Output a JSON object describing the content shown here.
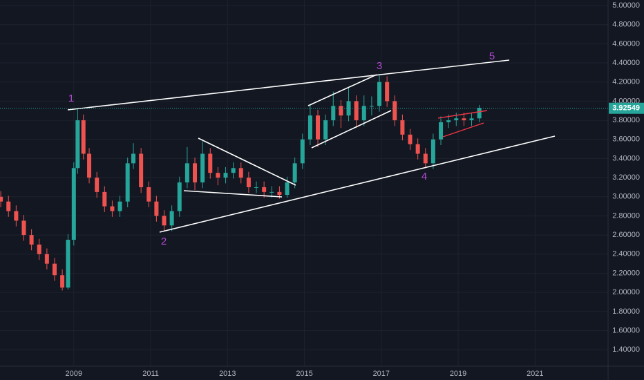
{
  "chart_data": {
    "type": "candlestick",
    "x": [
      2007.1,
      2007.3,
      2007.5,
      2007.7,
      2007.9,
      2008.1,
      2008.3,
      2008.5,
      2008.7,
      2008.85,
      2009.0,
      2009.1,
      2009.25,
      2009.4,
      2009.6,
      2009.8,
      2010.0,
      2010.2,
      2010.4,
      2010.55,
      2010.75,
      2010.95,
      2011.15,
      2011.35,
      2011.55,
      2011.75,
      2011.95,
      2012.15,
      2012.35,
      2012.55,
      2012.75,
      2012.95,
      2013.15,
      2013.35,
      2013.55,
      2013.75,
      2013.95,
      2014.15,
      2014.35,
      2014.55,
      2014.75,
      2014.95,
      2015.15,
      2015.35,
      2015.55,
      2015.75,
      2015.95,
      2016.15,
      2016.35,
      2016.55,
      2016.75,
      2016.95,
      2017.15,
      2017.35,
      2017.55,
      2017.75,
      2017.95,
      2018.15,
      2018.35,
      2018.55,
      2018.75,
      2018.95,
      2019.15,
      2019.35,
      2019.55
    ],
    "open": [
      3.0,
      2.95,
      2.85,
      2.75,
      2.6,
      2.5,
      2.4,
      2.3,
      2.18,
      2.05,
      2.55,
      3.3,
      3.8,
      3.45,
      3.2,
      3.05,
      2.9,
      2.85,
      2.95,
      3.35,
      3.45,
      3.1,
      2.95,
      2.8,
      2.7,
      2.85,
      3.15,
      3.35,
      3.15,
      3.45,
      3.25,
      3.2,
      3.25,
      3.3,
      3.2,
      3.1,
      3.1,
      3.05,
      3.05,
      3.02,
      3.15,
      3.35,
      3.6,
      3.85,
      3.6,
      3.8,
      3.95,
      3.85,
      4.0,
      3.8,
      3.95,
      3.95,
      4.2,
      4.0,
      3.8,
      3.65,
      3.55,
      3.45,
      3.35,
      3.6,
      3.78,
      3.8,
      3.82,
      3.8,
      3.82
    ],
    "high": [
      3.06,
      3.01,
      2.91,
      2.81,
      2.66,
      2.56,
      2.46,
      2.36,
      2.24,
      2.61,
      3.36,
      3.92,
      3.86,
      3.51,
      3.26,
      3.11,
      2.96,
      3.01,
      3.41,
      3.56,
      3.51,
      3.16,
      3.01,
      2.86,
      2.91,
      3.21,
      3.52,
      3.41,
      3.58,
      3.51,
      3.31,
      3.31,
      3.36,
      3.36,
      3.26,
      3.16,
      3.16,
      3.11,
      3.11,
      3.21,
      3.41,
      3.66,
      3.96,
      3.91,
      3.86,
      4.1,
      4.01,
      4.14,
      4.06,
      4.06,
      4.05,
      4.28,
      4.26,
      4.06,
      3.86,
      3.71,
      3.61,
      3.51,
      3.66,
      3.84,
      3.86,
      3.88,
      3.88,
      3.88,
      3.96
    ],
    "low": [
      2.89,
      2.79,
      2.69,
      2.54,
      2.44,
      2.34,
      2.24,
      2.12,
      2.02,
      2.03,
      2.49,
      3.24,
      3.39,
      3.14,
      2.99,
      2.84,
      2.79,
      2.79,
      2.89,
      3.29,
      3.04,
      2.89,
      2.74,
      2.64,
      2.64,
      2.79,
      3.09,
      3.07,
      3.09,
      3.19,
      3.12,
      3.14,
      3.19,
      3.14,
      3.04,
      3.04,
      2.99,
      2.99,
      2.98,
      2.99,
      3.09,
      3.29,
      3.54,
      3.52,
      3.54,
      3.74,
      3.72,
      3.79,
      3.72,
      3.74,
      3.85,
      3.89,
      3.94,
      3.74,
      3.59,
      3.49,
      3.39,
      3.3,
      3.29,
      3.54,
      3.72,
      3.74,
      3.74,
      3.74,
      3.78
    ],
    "close": [
      2.95,
      2.85,
      2.75,
      2.6,
      2.5,
      2.4,
      2.3,
      2.18,
      2.05,
      2.55,
      3.3,
      3.8,
      3.45,
      3.2,
      3.05,
      2.9,
      2.85,
      2.95,
      3.35,
      3.45,
      3.1,
      2.95,
      2.8,
      2.7,
      2.85,
      3.15,
      3.35,
      3.15,
      3.45,
      3.25,
      3.2,
      3.25,
      3.3,
      3.2,
      3.1,
      3.1,
      3.05,
      3.05,
      3.02,
      3.15,
      3.35,
      3.6,
      3.85,
      3.6,
      3.8,
      3.95,
      3.85,
      4.0,
      3.8,
      3.95,
      3.95,
      4.2,
      4.0,
      3.8,
      3.65,
      3.55,
      3.45,
      3.35,
      3.6,
      3.78,
      3.8,
      3.82,
      3.8,
      3.82,
      3.93
    ],
    "up_color": "#26a69a",
    "down_color": "#ef5350",
    "xlim": [
      2007.08,
      2022.9
    ],
    "xticks": [
      2009,
      2011,
      2013,
      2015,
      2017,
      2019,
      2021
    ],
    "ylim": [
      1.228,
      5.058
    ],
    "yticks": [
      {
        "value": 1.4,
        "label": "1.40000"
      },
      {
        "value": 1.6,
        "label": "1.60000"
      },
      {
        "value": 1.8,
        "label": "1.80000"
      },
      {
        "value": 2.0,
        "label": "2.00000"
      },
      {
        "value": 2.2,
        "label": "2.20000"
      },
      {
        "value": 2.4,
        "label": "2.40000"
      },
      {
        "value": 2.6,
        "label": "2.60000"
      },
      {
        "value": 2.8,
        "label": "2.80000"
      },
      {
        "value": 3.0,
        "label": "3.00000"
      },
      {
        "value": 3.2,
        "label": "3.20000"
      },
      {
        "value": 3.4,
        "label": "3.40000"
      },
      {
        "value": 3.6,
        "label": "3.60000"
      },
      {
        "value": 3.8,
        "label": "3.80000"
      },
      {
        "value": 4.0,
        "label": "4.00000"
      },
      {
        "value": 4.2,
        "label": "4.20000"
      },
      {
        "value": 4.4,
        "label": "4.40000"
      },
      {
        "value": 4.6,
        "label": "4.60000"
      },
      {
        "value": 4.8,
        "label": "4.80000"
      },
      {
        "value": 5.0,
        "label": "5.00000"
      }
    ],
    "grid": true,
    "last_price": 3.92549,
    "annotations": [
      "1",
      "2",
      "3",
      "4",
      "5"
    ]
  }
}
